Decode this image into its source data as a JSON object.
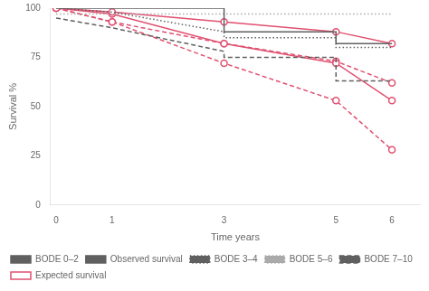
{
  "chart_data": {
    "type": "line",
    "xlabel": "Time years",
    "ylabel": "Survival %",
    "xlim": [
      -0.1,
      6.5
    ],
    "ylim": [
      0,
      100
    ],
    "xticks": [
      0,
      1,
      3,
      5,
      6
    ],
    "yticks": [
      0,
      25,
      50,
      75,
      100
    ],
    "grid": false,
    "legend": "lower left",
    "series": [
      {
        "name": "BODE 0–2",
        "color": "#606060",
        "line_style": "solid",
        "x": [
          0,
          3,
          3,
          5,
          5,
          6
        ],
        "values": [
          100,
          100,
          88,
          88,
          82,
          82
        ]
      },
      {
        "name": "Observed survival",
        "color": "#606060",
        "line_style": "solid",
        "x": [],
        "values": []
      },
      {
        "name": "BODE 3–4",
        "color": "#606060",
        "line_style": "dotted",
        "x": [
          0,
          1,
          3,
          3,
          5,
          5,
          6
        ],
        "values": [
          100,
          98,
          88,
          85,
          85,
          80,
          80
        ]
      },
      {
        "name": "BODE 5–6",
        "color": "#aaaaaa",
        "line_style": "dotted",
        "x": [
          0,
          3,
          3,
          5,
          5,
          6
        ],
        "values": [
          97,
          97,
          97,
          97,
          97,
          97
        ]
      },
      {
        "name": "BODE 7–10",
        "color": "#606060",
        "line_style": "dashed",
        "x": [
          0,
          1,
          3,
          3,
          5,
          5,
          6
        ],
        "values": [
          95,
          90,
          78,
          75,
          75,
          63,
          63
        ]
      },
      {
        "name": "Expected survival",
        "color": "#e05070",
        "line_style": "solid",
        "marker": "circle",
        "x": [
          0,
          1,
          3,
          5,
          6
        ],
        "values": [
          100,
          98,
          93,
          88,
          82
        ]
      },
      {
        "name": "Expected survival",
        "color": "#e05070",
        "line_style": "solid",
        "marker": "circle",
        "x": [
          0,
          1,
          3,
          5,
          6
        ],
        "values": [
          100,
          97,
          82,
          72,
          53
        ]
      },
      {
        "name": "Expected survival",
        "color": "#e05070",
        "line_style": "dashed",
        "marker": "circle",
        "x": [
          0,
          1,
          3,
          5,
          6
        ],
        "values": [
          100,
          93,
          72,
          53,
          28
        ]
      },
      {
        "name": "Expected survival",
        "color": "#e05070",
        "line_style": "dashed",
        "marker": "circle",
        "x": [
          0,
          1,
          3,
          5,
          6
        ],
        "values": [
          100,
          93,
          82,
          73,
          62
        ]
      }
    ]
  }
}
